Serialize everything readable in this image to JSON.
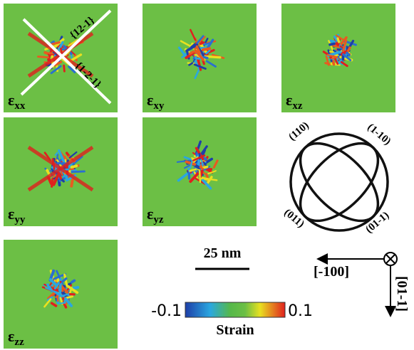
{
  "panels": [
    {
      "symbol": "ε",
      "subscript": "xx",
      "annotations": [
        "{12-1}",
        "{1-2-1}"
      ]
    },
    {
      "symbol": "ε",
      "subscript": "xy"
    },
    {
      "symbol": "ε",
      "subscript": "xz"
    },
    {
      "symbol": "ε",
      "subscript": "yy"
    },
    {
      "symbol": "ε",
      "subscript": "yz"
    },
    {
      "symbol": "ε",
      "subscript": "zz"
    }
  ],
  "stereogram": {
    "labels": [
      "(110)",
      "(1-10)",
      "(011)",
      "(01-1)"
    ]
  },
  "axes": {
    "horizontal": "[-100]",
    "vertical": "[01-1]"
  },
  "scale_bar": {
    "label": "25 nm"
  },
  "colorbar": {
    "min": -0.1,
    "max": 0.1,
    "label": "Strain"
  }
}
